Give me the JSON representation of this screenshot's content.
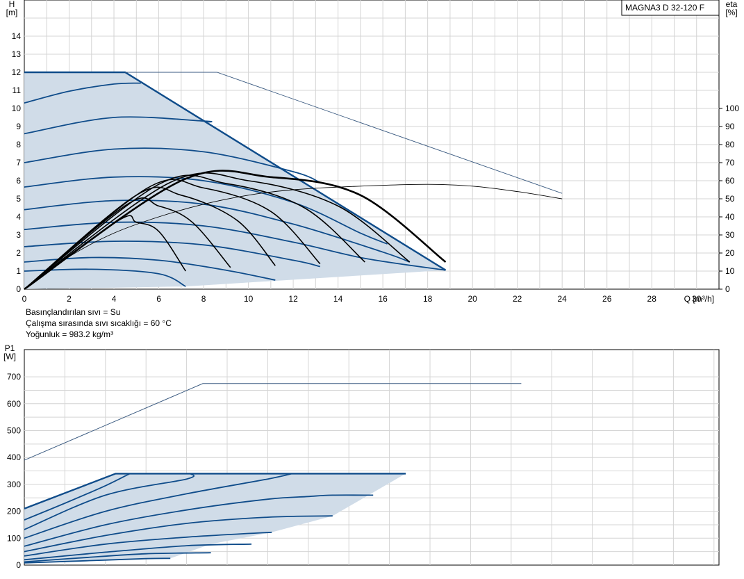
{
  "chart_data": [
    {
      "type": "line",
      "title": "MAGNA3 D 32-120 F",
      "xlabel": "Q [m³/h]",
      "ylabel": "H\n[m]",
      "y2label": "eta\n[%]",
      "xlim": [
        0,
        31
      ],
      "ylim": [
        0,
        16
      ],
      "y2lim": [
        0,
        160
      ],
      "x_ticks": [
        0,
        2,
        4,
        6,
        8,
        10,
        12,
        14,
        16,
        18,
        20,
        22,
        24,
        26,
        28,
        30
      ],
      "y_ticks": [
        0,
        1,
        2,
        3,
        4,
        5,
        6,
        7,
        8,
        9,
        10,
        11,
        12,
        13,
        14
      ],
      "y2_ticks": [
        0,
        10,
        20,
        30,
        40,
        50,
        60,
        70,
        80,
        90,
        100
      ],
      "grid": true,
      "colors": {
        "curve": "#0f4c8a",
        "area": "#d0dce8",
        "efficiency": "#000000",
        "twin": "#3a5a80"
      },
      "envelope": [
        [
          0,
          12
        ],
        [
          4.5,
          12
        ],
        [
          18.8,
          1.05
        ],
        [
          7.2,
          0.15
        ],
        [
          0,
          0
        ]
      ],
      "series": [
        {
          "values": [
            [
              0,
              12
            ],
            [
              4.5,
              12
            ],
            [
              18.8,
              1.05
            ]
          ]
        },
        {
          "values": [
            [
              0,
              10.3
            ],
            [
              2,
              10.95
            ],
            [
              4,
              11.35
            ],
            [
              5.2,
              11.4
            ]
          ]
        },
        {
          "values": [
            [
              0,
              8.6
            ],
            [
              4,
              9.5
            ],
            [
              8,
              9.3
            ],
            [
              8.2,
              9.25
            ]
          ]
        },
        {
          "values": [
            [
              0,
              7.0
            ],
            [
              4,
              7.75
            ],
            [
              8,
              7.6
            ],
            [
              12,
              6.5
            ],
            [
              13.2,
              5.9
            ]
          ]
        },
        {
          "values": [
            [
              0,
              5.65
            ],
            [
              4,
              6.2
            ],
            [
              8,
              6.0
            ],
            [
              12,
              4.8
            ],
            [
              15,
              3.1
            ],
            [
              16.2,
              2.5
            ]
          ]
        },
        {
          "values": [
            [
              0,
              4.4
            ],
            [
              4,
              4.9
            ],
            [
              8,
              4.7
            ],
            [
              12,
              3.6
            ],
            [
              16,
              2.05
            ],
            [
              17.2,
              1.5
            ]
          ]
        },
        {
          "values": [
            [
              0,
              3.3
            ],
            [
              4,
              3.7
            ],
            [
              8,
              3.5
            ],
            [
              12,
              2.6
            ],
            [
              15.2,
              1.7
            ],
            [
              18.8,
              1.05
            ]
          ]
        },
        {
          "values": [
            [
              0,
              2.35
            ],
            [
              4,
              2.65
            ],
            [
              8,
              2.45
            ],
            [
              12,
              1.6
            ],
            [
              13.2,
              1.25
            ]
          ]
        },
        {
          "values": [
            [
              0,
              1.5
            ],
            [
              3,
              1.75
            ],
            [
              6,
              1.6
            ],
            [
              9,
              1.05
            ],
            [
              11.2,
              0.5
            ]
          ]
        },
        {
          "values": [
            [
              0,
              1.0
            ],
            [
              3,
              1.1
            ],
            [
              6,
              0.85
            ],
            [
              7.2,
              0.15
            ]
          ]
        },
        {
          "values": [
            [
              0,
              0
            ],
            [
              4,
              3.8
            ],
            [
              6,
              4.4
            ],
            [
              8,
              4.6
            ],
            [
              10,
              4.5
            ],
            [
              12,
              4.1
            ],
            [
              14,
              3.4
            ],
            [
              18,
              2.0
            ],
            [
              19.5,
              1.5
            ]
          ]
        },
        {
          "values": [
            [
              0,
              0
            ],
            [
              2.4,
              12
            ],
            [
              4.5,
              12
            ],
            [
              8.6,
              12
            ],
            [
              24,
              5.3
            ]
          ]
        },
        {
          "values": [
            [
              0,
              0
            ],
            [
              2,
              18
            ],
            [
              4,
              31
            ],
            [
              6,
              40
            ],
            [
              8,
              47
            ],
            [
              10,
              52
            ],
            [
              12,
              55
            ],
            [
              15,
              57
            ],
            [
              18,
              58
            ],
            [
              20,
              57
            ],
            [
              22,
              54
            ],
            [
              24,
              50
            ]
          ]
        },
        {
          "values": [
            [
              0,
              0
            ],
            [
              4.2,
              38
            ],
            [
              5,
              37
            ],
            [
              6,
              32
            ],
            [
              7.2,
              10
            ]
          ]
        },
        {
          "values": [
            [
              0,
              0
            ],
            [
              4.6,
              47
            ],
            [
              6,
              46
            ],
            [
              7.5,
              37
            ],
            [
              9.2,
              12
            ]
          ]
        },
        {
          "values": [
            [
              0,
              0
            ],
            [
              5,
              52
            ],
            [
              7,
              52
            ],
            [
              9.5,
              38
            ],
            [
              11.2,
              13
            ]
          ]
        },
        {
          "values": [
            [
              0,
              0
            ],
            [
              5.5,
              56
            ],
            [
              8,
              56
            ],
            [
              11,
              43
            ],
            [
              13.2,
              14
            ]
          ]
        },
        {
          "values": [
            [
              0,
              0
            ],
            [
              6,
              58
            ],
            [
              9,
              58.5
            ],
            [
              12.5,
              45
            ],
            [
              15.2,
              15
            ]
          ]
        },
        {
          "values": [
            [
              0,
              0
            ],
            [
              6.5,
              59
            ],
            [
              10,
              60
            ],
            [
              14,
              46
            ],
            [
              17.2,
              15
            ]
          ]
        },
        {
          "values": [
            [
              0,
              0
            ],
            [
              7,
              60
            ],
            [
              11,
              62
            ],
            [
              15,
              52
            ],
            [
              18.8,
              15
            ]
          ]
        }
      ]
    },
    {
      "type": "line",
      "xlabel": "",
      "ylabel": "P1\n[W]",
      "xlim": [
        0,
        34
      ],
      "ylim": [
        0,
        750
      ],
      "y_ticks": [
        0,
        100,
        200,
        300,
        400,
        500,
        600,
        700
      ],
      "grid": true,
      "colors": {
        "curve": "#0f4c8a",
        "area": "#d0dce8",
        "twin": "#3a5a80"
      },
      "envelope": [
        [
          0,
          210
        ],
        [
          4.5,
          340
        ],
        [
          18.8,
          340
        ],
        [
          15.2,
          183
        ],
        [
          12.2,
          122
        ],
        [
          9.2,
          78
        ],
        [
          7.2,
          25
        ],
        [
          0,
          10
        ]
      ],
      "series": [
        {
          "values": [
            [
              0,
              210
            ],
            [
              4.5,
              340
            ],
            [
              18.8,
              340
            ]
          ]
        },
        {
          "values": [
            [
              0,
              168
            ],
            [
              2,
              230
            ],
            [
              4,
              295
            ],
            [
              5.2,
              340
            ]
          ]
        },
        {
          "values": [
            [
              0,
              132
            ],
            [
              4,
              260
            ],
            [
              8,
              320
            ],
            [
              8.2,
              340
            ]
          ]
        },
        {
          "values": [
            [
              0,
              100
            ],
            [
              4,
              200
            ],
            [
              8,
              265
            ],
            [
              12,
              320
            ],
            [
              13.2,
              340
            ]
          ]
        },
        {
          "values": [
            [
              0,
              70
            ],
            [
              4,
              150
            ],
            [
              8,
              205
            ],
            [
              12,
              245
            ],
            [
              14,
              255
            ],
            [
              15.2,
              260
            ],
            [
              17.2,
              260
            ]
          ]
        },
        {
          "values": [
            [
              0,
              50
            ],
            [
              4,
              110
            ],
            [
              8,
              155
            ],
            [
              12,
              178
            ],
            [
              15.2,
              183
            ]
          ]
        },
        {
          "values": [
            [
              0,
              34
            ],
            [
              4,
              78
            ],
            [
              8,
              104
            ],
            [
              12.2,
              122
            ]
          ]
        },
        {
          "values": [
            [
              0,
              20
            ],
            [
              4,
              48
            ],
            [
              8,
              72
            ],
            [
              11.2,
              78
            ]
          ]
        },
        {
          "values": [
            [
              0,
              12
            ],
            [
              3,
              28
            ],
            [
              6,
              42
            ],
            [
              9.2,
              46
            ]
          ]
        },
        {
          "values": [
            [
              0,
              8
            ],
            [
              3,
              16
            ],
            [
              6,
              24
            ],
            [
              7.2,
              25
            ]
          ]
        },
        {
          "values": [
            [
              0,
              390
            ],
            [
              8.8,
              675
            ],
            [
              24.5,
              675
            ]
          ]
        }
      ]
    }
  ],
  "notes": [
    "Basınçlandırılan sıvı = Su",
    "Çalışma sırasında sıvı sıcaklığı = 60 °C",
    "Yoğunluk = 983.2 kg/m³"
  ]
}
